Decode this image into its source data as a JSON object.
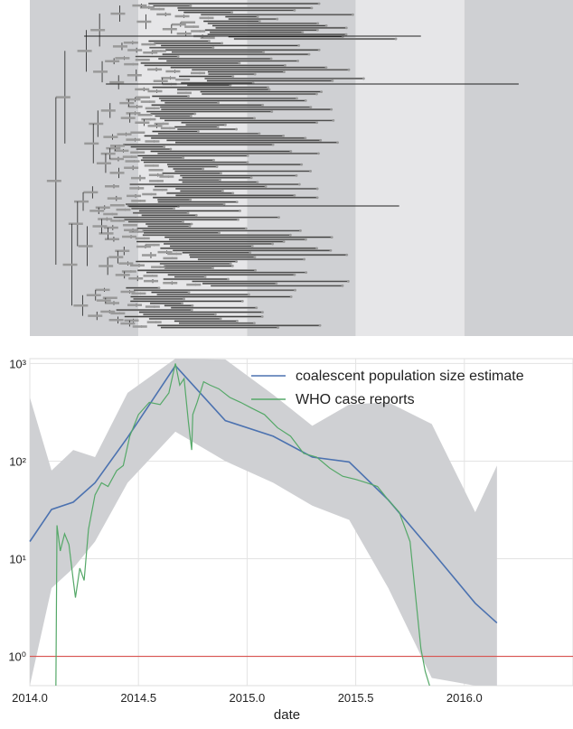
{
  "chart_data": [
    {
      "type": "tree",
      "description_visible": "time-scaled phylogenetic tree with alternating shaded half-year bands",
      "x_range": [
        2014.0,
        2016.5
      ],
      "bands": [
        {
          "from": 2014.0,
          "to": 2014.5,
          "shade": "#cfd0d3"
        },
        {
          "from": 2014.5,
          "to": 2015.0,
          "shade": "#e6e6e8"
        },
        {
          "from": 2015.0,
          "to": 2015.5,
          "shade": "#cfd0d3"
        },
        {
          "from": 2015.5,
          "to": 2016.0,
          "shade": "#e6e6e8"
        },
        {
          "from": 2016.0,
          "to": 2016.5,
          "shade": "#cfd0d3"
        }
      ],
      "branch_color": "#222222",
      "uncertainty_color": "#999999"
    },
    {
      "type": "line",
      "xlabel": "date",
      "ylabel": "",
      "xlim": [
        2014.0,
        2016.5
      ],
      "ylim_log10": [
        -0.3,
        3.05
      ],
      "y_scale": "log",
      "x_ticks": [
        2014.0,
        2014.5,
        2015.0,
        2015.5,
        2016.0
      ],
      "x_tick_labels": [
        "2014.0",
        "2014.5",
        "2015.0",
        "2015.5",
        "2016.0"
      ],
      "y_ticks": [
        1,
        10,
        100,
        1000
      ],
      "y_tick_labels": [
        "10⁰",
        "10¹",
        "10²",
        "10³"
      ],
      "grid": true,
      "legend_position": "top-right",
      "reference_line": {
        "y": 1,
        "color": "#d9534f"
      },
      "series": [
        {
          "name": "coalescent population size estimate",
          "color": "#4c72b0",
          "x": [
            2014.0,
            2014.1,
            2014.2,
            2014.3,
            2014.45,
            2014.67,
            2014.9,
            2015.12,
            2015.3,
            2015.47,
            2015.65,
            2015.85,
            2016.05,
            2016.15
          ],
          "y": [
            15,
            32,
            38,
            60,
            175,
            950,
            260,
            180,
            110,
            98,
            40,
            12,
            3.5,
            2.2
          ]
        },
        {
          "name": "WHO case reports",
          "color": "#55a868",
          "x": [
            2014.12,
            2014.125,
            2014.14,
            2014.16,
            2014.18,
            2014.2,
            2014.21,
            2014.23,
            2014.25,
            2014.27,
            2014.3,
            2014.33,
            2014.36,
            2014.4,
            2014.43,
            2014.46,
            2014.5,
            2014.55,
            2014.6,
            2014.64,
            2014.67,
            2014.69,
            2014.71,
            2014.73,
            2014.745,
            2014.75,
            2014.77,
            2014.8,
            2014.83,
            2014.87,
            2014.92,
            2014.97,
            2015.02,
            2015.08,
            2015.14,
            2015.2,
            2015.26,
            2015.32,
            2015.38,
            2015.44,
            2015.5,
            2015.55,
            2015.6,
            2015.65,
            2015.7,
            2015.75,
            2015.8,
            2015.82,
            2015.84
          ],
          "y": [
            0.5,
            22,
            12,
            18,
            14,
            6,
            4,
            8,
            6,
            20,
            45,
            60,
            55,
            80,
            90,
            180,
            300,
            400,
            380,
            500,
            1000,
            600,
            700,
            250,
            130,
            300,
            400,
            650,
            600,
            550,
            450,
            400,
            350,
            300,
            220,
            180,
            120,
            110,
            85,
            70,
            65,
            60,
            55,
            40,
            30,
            15,
            1.2,
            0.7,
            0.5
          ]
        }
      ],
      "uncertainty_band": {
        "color": "#cfd0d3",
        "x": [
          2014.0,
          2014.1,
          2014.2,
          2014.3,
          2014.45,
          2014.67,
          2014.9,
          2015.12,
          2015.3,
          2015.47,
          2015.65,
          2015.85,
          2016.05,
          2016.15
        ],
        "lower": [
          0.5,
          5,
          8,
          15,
          60,
          200,
          100,
          60,
          35,
          25,
          5,
          0.6,
          0.5,
          0.5
        ],
        "upper": [
          450,
          80,
          130,
          110,
          500,
          1300,
          1100,
          480,
          230,
          380,
          400,
          240,
          30,
          90
        ]
      }
    }
  ]
}
